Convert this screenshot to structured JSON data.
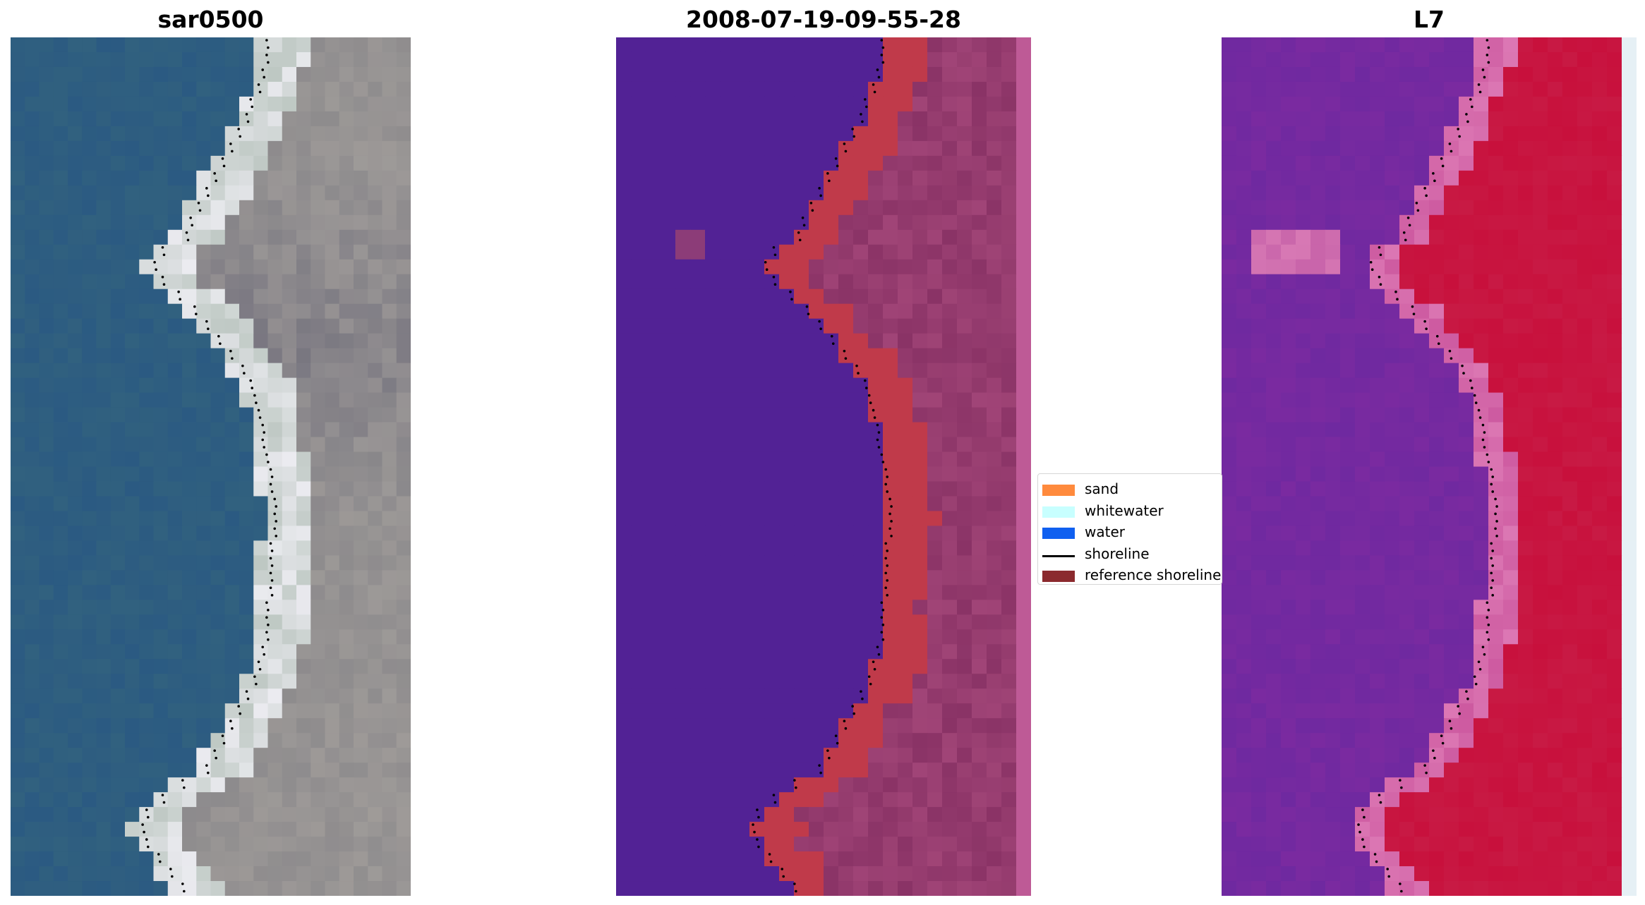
{
  "panels": [
    {
      "title": "sar0500"
    },
    {
      "title": "2008-07-19-09-55-28"
    },
    {
      "title": "L7"
    }
  ],
  "legend": {
    "items": [
      {
        "label": "sand",
        "color": "#ff8a3d",
        "kind": "patch"
      },
      {
        "label": "whitewater",
        "color": "#c8ffff",
        "kind": "patch"
      },
      {
        "label": "water",
        "color": "#1060f0",
        "kind": "patch"
      },
      {
        "label": "shoreline",
        "color": "#000000",
        "kind": "line"
      },
      {
        "label": "reference shoreline",
        "color": "#8b2a2e",
        "kind": "patch"
      }
    ]
  },
  "colors": {
    "rgb_water": "#2b5a82",
    "rgb_sand": "#c9c5b4",
    "class_water": "#522295",
    "class_sand": "#c03a4a",
    "class_land": "#8a3366",
    "index_low": "#7a2aa0",
    "index_high": "#c8103c"
  }
}
